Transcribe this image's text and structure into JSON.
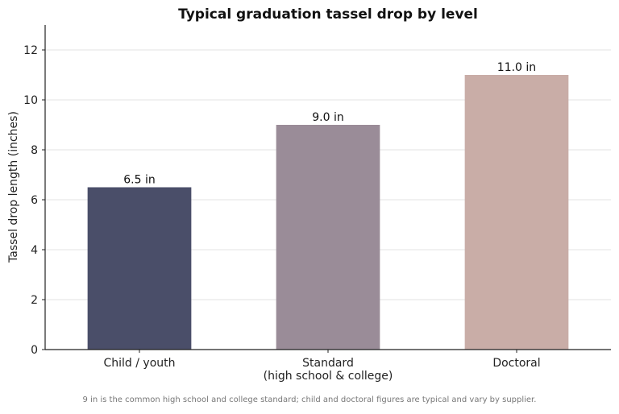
{
  "chart_data": {
    "type": "bar",
    "title": "Typical graduation tassel drop by level",
    "xlabel": "",
    "ylabel": "Tassel drop length (inches)",
    "categories": [
      [
        "Child / youth"
      ],
      [
        "Standard",
        "(high school & college)"
      ],
      [
        "Doctoral"
      ]
    ],
    "values": [
      6.5,
      9.0,
      11.0
    ],
    "value_labels": [
      "6.5 in",
      "9.0 in",
      "11.0 in"
    ],
    "colors": [
      "#4a4e69",
      "#9a8c98",
      "#c9ada7"
    ],
    "ylim": [
      0,
      13
    ],
    "yticks": [
      0,
      2,
      4,
      6,
      8,
      10,
      12
    ],
    "grid": "horizontal",
    "legend": "none"
  },
  "footnote": "9 in is the common high school and college standard; child and doctoral figures are typical and vary by supplier."
}
